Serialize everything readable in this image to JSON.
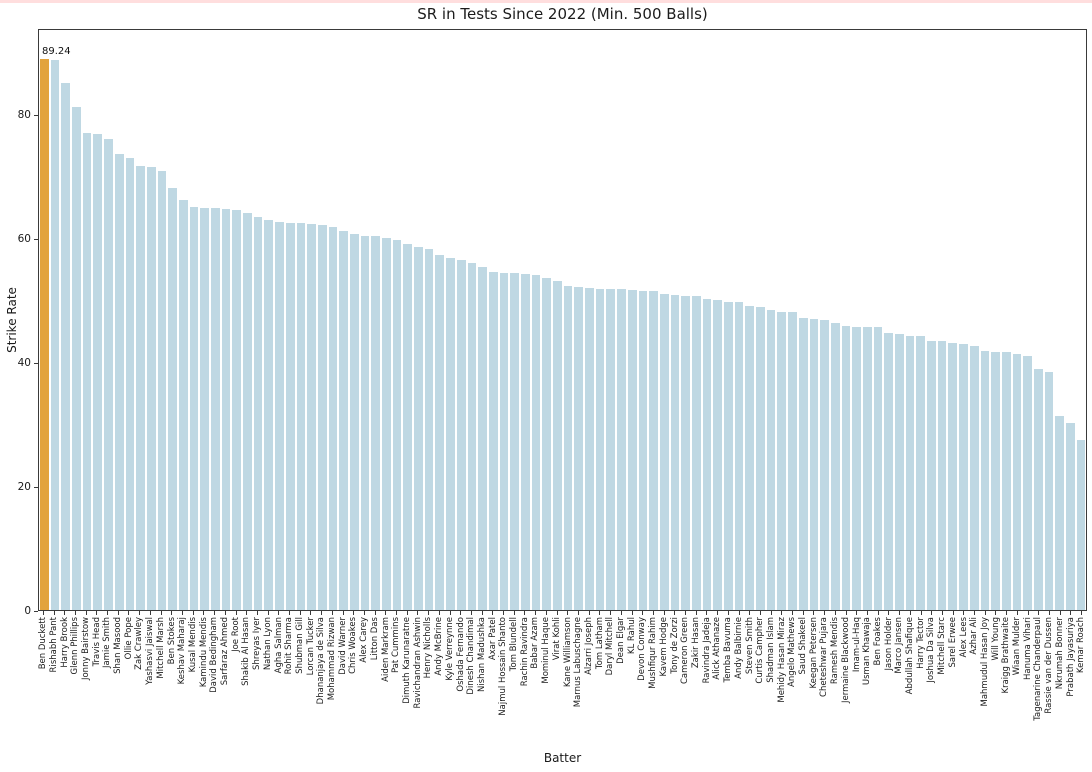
{
  "chart_data": {
    "type": "bar",
    "title": "SR in Tests Since 2022 (Min. 500 Balls)",
    "xlabel": "Batter",
    "ylabel": "Strike Rate",
    "ylim": [
      0,
      93.9
    ],
    "yticks": [
      0,
      20,
      40,
      60,
      80
    ],
    "grid": false,
    "legend": "none",
    "bar_label": "89.24",
    "highlight_index": 0,
    "colors": {
      "highlight_bar": "#E2A33C",
      "default_bar": "#BFD8E3",
      "top_strip": "#FFDEDE",
      "spine": "#3a3a3a"
    },
    "categories": [
      "Ben Duckett",
      "Rishabh Pant",
      "Harry Brook",
      "Glenn Phillips",
      "Jonny Bairstow",
      "Travis Head",
      "Jamie Smith",
      "Shan Masood",
      "Ollie Pope",
      "Zak Crawley",
      "Yashasvi Jaiswal",
      "Mitchell Marsh",
      "Ben Stokes",
      "Keshav Maharaj",
      "Kusal Mendis",
      "Kamindu Mendis",
      "David Bedingham",
      "Sarfaraz Ahmed",
      "Joe Root",
      "Shakib Al Hasan",
      "Shreyas Iyer",
      "Nathan Lyon",
      "Agha Salman",
      "Rohit Sharma",
      "Shubman Gill",
      "Lorcan Tucker",
      "Dhananjaya de Silva",
      "Mohammad Rizwan",
      "David Warner",
      "Chris Woakes",
      "Alex Carey",
      "Litton Das",
      "Aiden Markram",
      "Pat Cummins",
      "Dimuth Karunaratne",
      "Ravichandran Ashwin",
      "Henry Nicholls",
      "Andy McBrine",
      "Kyle Verreynne",
      "Oshada Fernando",
      "Dinesh Chandimal",
      "Nishan Madushka",
      "Axar Patel",
      "Najmul Hossain Shanto",
      "Tom Blundell",
      "Rachin Ravindra",
      "Babar Azam",
      "Mominul Haque",
      "Virat Kohli",
      "Kane Williamson",
      "Marnus Labuschagne",
      "Alzarri Joseph",
      "Tom Latham",
      "Daryl Mitchell",
      "Dean Elgar",
      "KL Rahul",
      "Devon Conway",
      "Mushfiqur Rahim",
      "Kavem Hodge",
      "Tony de Zorzi",
      "Cameron Green",
      "Zakir Hasan",
      "Ravindra Jadeja",
      "Alick Athanaze",
      "Temba Bavuma",
      "Andy Balbirnie",
      "Steven Smith",
      "Curtis Campher",
      "Shadman Islam",
      "Mehidy Hasan Miraz",
      "Angelo Mathews",
      "Saud Shakeel",
      "Keegan Petersen",
      "Cheteshwar Pujara",
      "Ramesh Mendis",
      "Jermaine Blackwood",
      "Imam-ul-Haq",
      "Usman Khawaja",
      "Ben Foakes",
      "Jason Holder",
      "Marco Jansen",
      "Abdullah Shafique",
      "Harry Tector",
      "Joshua Da Silva",
      "Mitchell Starc",
      "Sarel Erwee",
      "Alex Lees",
      "Azhar Ali",
      "Mahmudul Hasan Joy",
      "Will Young",
      "Kraigg Brathwaite",
      "Wiaan Mulder",
      "Hanuma Vihari",
      "Tagenarine Chanderpaul",
      "Rassie van der Dussen",
      "Nkrumah Bonner",
      "Prabath Jayasuriya",
      "Kemar Roach"
    ],
    "values": [
      89.24,
      89.0,
      85.3,
      81.4,
      77.3,
      77.0,
      76.3,
      73.9,
      73.1,
      71.9,
      71.8,
      71.1,
      68.3,
      66.4,
      65.2,
      65.1,
      65.1,
      65.0,
      64.7,
      64.3,
      63.6,
      63.1,
      62.8,
      62.7,
      62.6,
      62.5,
      62.3,
      62.0,
      61.3,
      60.8,
      60.6,
      60.5,
      60.3,
      59.9,
      59.2,
      58.8,
      58.5,
      57.5,
      57.0,
      56.7,
      56.1,
      55.6,
      54.7,
      54.6,
      54.5,
      54.4,
      54.3,
      53.7,
      53.2,
      52.4,
      52.3,
      52.1,
      52.0,
      52.0,
      51.9,
      51.8,
      51.7,
      51.6,
      51.1,
      51.0,
      50.9,
      50.8,
      50.3,
      50.2,
      49.9,
      49.8,
      49.3,
      49.0,
      48.6,
      48.3,
      48.2,
      47.2,
      47.1,
      47.0,
      46.4,
      46.0,
      45.9,
      45.9,
      45.8,
      44.8,
      44.7,
      44.4,
      44.3,
      43.6,
      43.5,
      43.3,
      43.1,
      42.7,
      41.9,
      41.8,
      41.8,
      41.5,
      41.1,
      39.0,
      38.6,
      31.4,
      30.2,
      27.5
    ]
  }
}
